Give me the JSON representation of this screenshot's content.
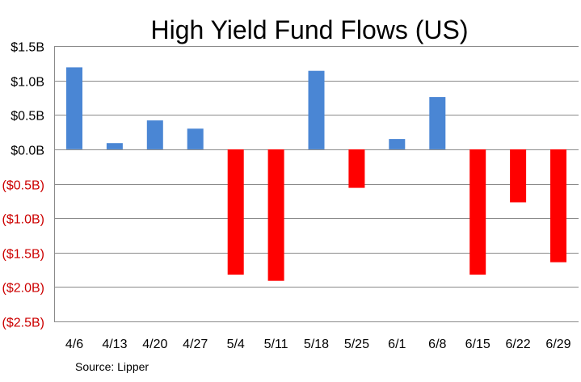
{
  "chart_data": {
    "type": "bar",
    "title": "High Yield Fund Flows (US)",
    "xlabel": "",
    "ylabel": "",
    "categories": [
      "4/6",
      "4/13",
      "4/20",
      "4/27",
      "5/4",
      "5/11",
      "5/18",
      "5/25",
      "6/1",
      "6/8",
      "6/15",
      "6/22",
      "6/29"
    ],
    "values": [
      1.19,
      0.09,
      0.42,
      0.3,
      -1.82,
      -1.91,
      1.14,
      -0.56,
      0.15,
      0.76,
      -1.82,
      -0.77,
      -1.64
    ],
    "unit": "B",
    "ylim": [
      -2.5,
      1.5
    ],
    "ytick_values": [
      1.5,
      1.0,
      0.5,
      0.0,
      -0.5,
      -1.0,
      -1.5,
      -2.0,
      -2.5
    ],
    "ytick_labels": [
      "$1.5B",
      "$1.0B",
      "$0.5B",
      "$0.0B",
      "($0.5B)",
      "($1.0B)",
      "($1.5B)",
      "($2.0B)",
      "($2.5B)"
    ],
    "grid": true,
    "legend": "none",
    "colors": {
      "positive": "#4a86d4",
      "negative": "#ff0000",
      "tick_positive": "#000000",
      "tick_negative": "#cc0000",
      "grid": "#8a8a8a",
      "axis": "#8a8a8a"
    },
    "source": "Source: Lipper"
  }
}
